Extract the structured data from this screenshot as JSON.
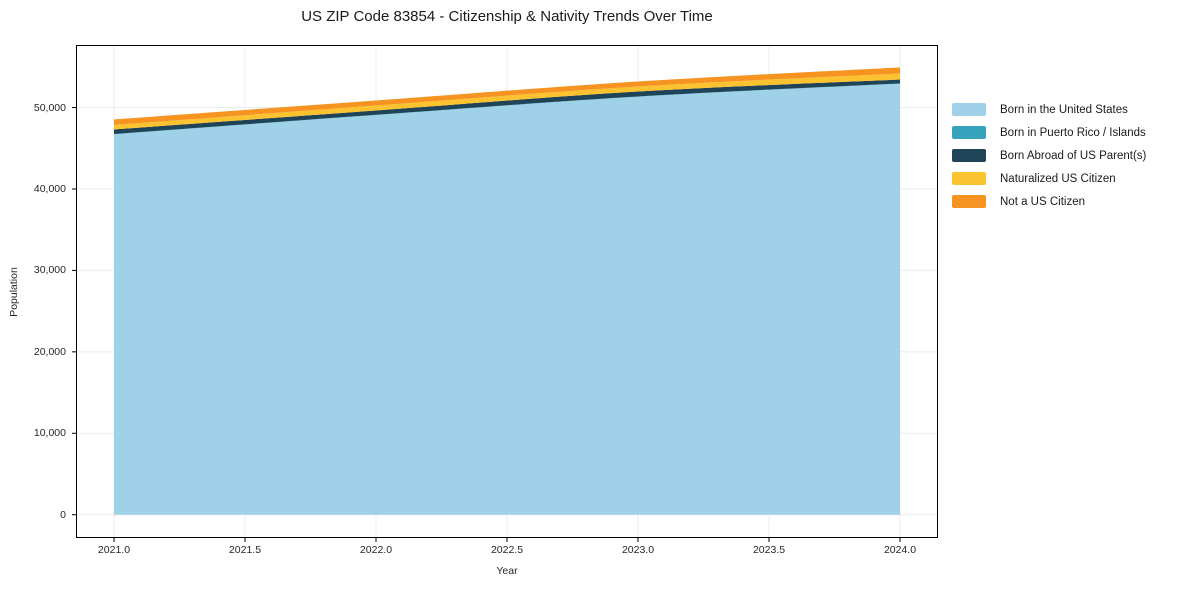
{
  "chart_data": {
    "type": "area",
    "stacked": true,
    "title": "US ZIP Code 83854 - Citizenship & Nativity Trends Over Time",
    "xlabel": "Year",
    "ylabel": "Population",
    "x": [
      2021,
      2022,
      2023,
      2024
    ],
    "series": [
      {
        "name": "Born in the United States",
        "color": "#9fd1e8",
        "values": [
          46720,
          49080,
          51330,
          52930
        ]
      },
      {
        "name": "Born in Puerto Rico / Islands",
        "color": "#38a3bd",
        "values": [
          30,
          30,
          30,
          30
        ]
      },
      {
        "name": "Born Abroad of US Parent(s)",
        "color": "#1f4457",
        "values": [
          560,
          530,
          610,
          480
        ]
      },
      {
        "name": "Naturalized US Citizen",
        "color": "#fcc331",
        "values": [
          550,
          610,
          610,
          740
        ]
      },
      {
        "name": "Not a US Citizen",
        "color": "#f79421",
        "values": [
          680,
          620,
          620,
          750
        ]
      }
    ],
    "totals": [
      48540,
      50870,
      53200,
      54930
    ],
    "xticks": [
      2021.0,
      2021.5,
      2022.0,
      2022.5,
      2023.0,
      2023.5,
      2024.0
    ],
    "xtick_labels": [
      "2021.0",
      "2021.5",
      "2022.0",
      "2022.5",
      "2023.0",
      "2023.5",
      "2024.0"
    ],
    "yticks": [
      0,
      10000,
      20000,
      30000,
      40000,
      50000
    ],
    "ytick_labels": [
      "0",
      "10,000",
      "20,000",
      "30,000",
      "40,000",
      "50,000"
    ],
    "xlim": [
      2020.855,
      2024.145
    ],
    "ylim": [
      -2860,
      57680
    ],
    "grid": true,
    "legend_position": "right-outside",
    "theme": {
      "grid_color": "#ececec",
      "spine_color": "#000000",
      "text_color": "#262626",
      "background": "#ffffff"
    }
  }
}
